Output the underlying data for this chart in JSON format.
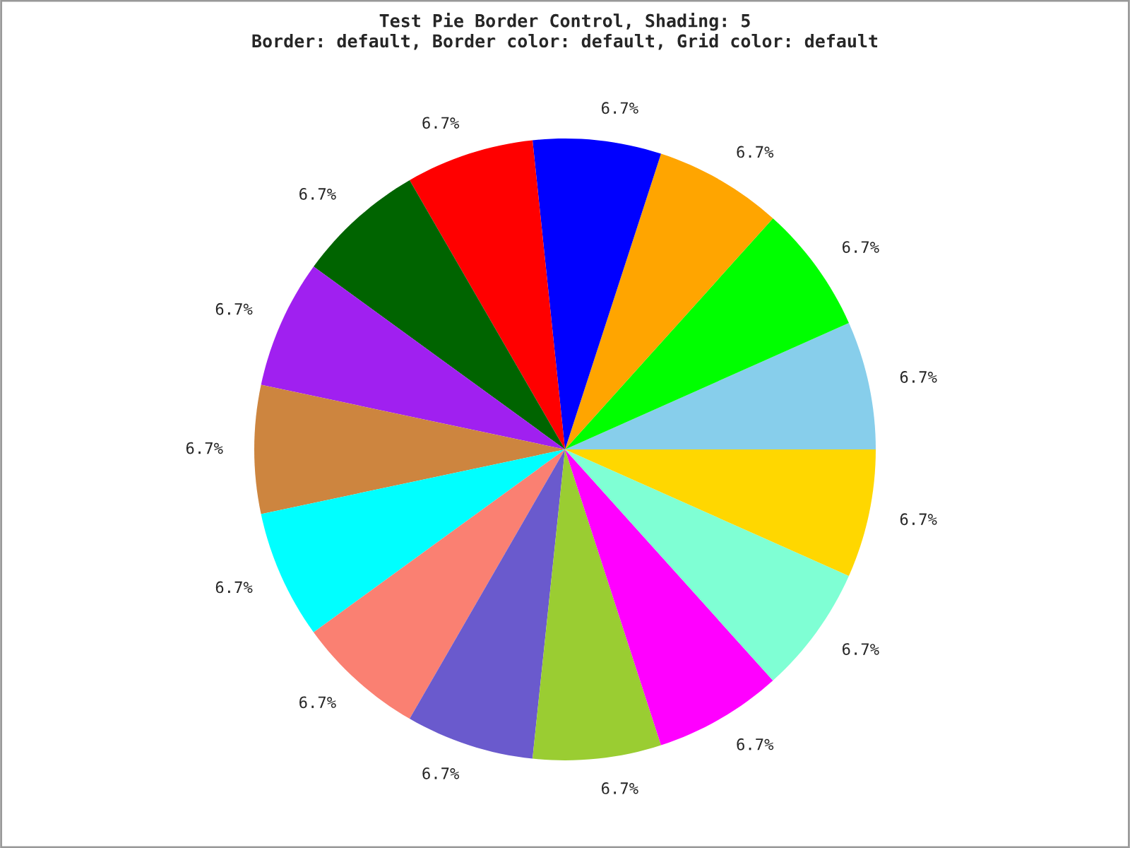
{
  "chart_data": {
    "type": "pie",
    "title": "Test Pie Border Control, Shading: 5",
    "subtitle": "Border: default, Border color: default, Grid color: default",
    "categories": [
      null,
      null,
      null,
      null,
      null,
      null,
      null,
      null,
      null,
      null,
      null,
      null,
      null,
      null,
      null
    ],
    "values": [
      6.7,
      6.7,
      6.7,
      6.7,
      6.7,
      6.7,
      6.7,
      6.7,
      6.7,
      6.7,
      6.7,
      6.7,
      6.7,
      6.7,
      6.7
    ],
    "value_labels": [
      "6.7%",
      "6.7%",
      "6.7%",
      "6.7%",
      "6.7%",
      "6.7%",
      "6.7%",
      "6.7%",
      "6.7%",
      "6.7%",
      "6.7%",
      "6.7%",
      "6.7%",
      "6.7%",
      "6.7%"
    ],
    "colors": [
      "#87ceeb",
      "#00ff00",
      "#ffa500",
      "#0000ff",
      "#ff0000",
      "#006400",
      "#a020f0",
      "#cd853f",
      "#00ffff",
      "#fa8072",
      "#6a5acd",
      "#9acd32",
      "#ff00ff",
      "#7fffd4",
      "#ffd700"
    ],
    "legend": false
  }
}
